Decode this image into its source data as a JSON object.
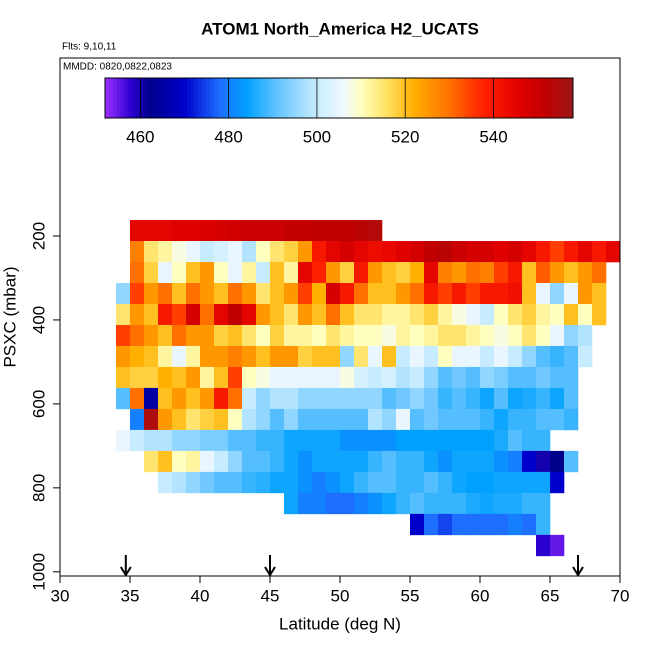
{
  "chart_data": {
    "type": "heatmap",
    "title": "ATOM1 North_America H2_UCATS",
    "subtitle": "Flts: 9,10,11",
    "annotation": "MMDD: 0820,0822,0823",
    "xlabel": "Latitude (deg N)",
    "ylabel": "PSXC (mbar)",
    "xlim": [
      30,
      70
    ],
    "xticks": [
      30,
      35,
      40,
      45,
      50,
      55,
      60,
      65,
      70
    ],
    "ylim": [
      1010,
      -224
    ],
    "yticks": [
      200,
      400,
      600,
      800,
      1000
    ],
    "clim": [
      452,
      558
    ],
    "cticks": [
      460,
      480,
      500,
      520,
      540
    ],
    "colorscale": [
      [
        452,
        "#9b30ff"
      ],
      [
        458,
        "#2a00d0"
      ],
      [
        462,
        "#00008b"
      ],
      [
        470,
        "#0000cd"
      ],
      [
        478,
        "#1e6fff"
      ],
      [
        484,
        "#00a0ff"
      ],
      [
        492,
        "#70c8ff"
      ],
      [
        500,
        "#c8ecff"
      ],
      [
        506,
        "#f0f8ff"
      ],
      [
        510,
        "#ffffc0"
      ],
      [
        516,
        "#ffe060"
      ],
      [
        522,
        "#ffb000"
      ],
      [
        530,
        "#ff7000"
      ],
      [
        538,
        "#ff2000"
      ],
      [
        546,
        "#e00000"
      ],
      [
        552,
        "#c00000"
      ],
      [
        558,
        "#9a1a1a"
      ]
    ],
    "arrows": [
      34.7,
      45,
      67
    ],
    "xbins": [
      34,
      35,
      36,
      37,
      38,
      39,
      40,
      41,
      42,
      43,
      44,
      45,
      46,
      47,
      48,
      49,
      50,
      51,
      52,
      53,
      54,
      55,
      56,
      57,
      58,
      59,
      60,
      61,
      62,
      63,
      64,
      65,
      66,
      67,
      68,
      69,
      70
    ],
    "ybins": [
      162,
      212,
      262,
      312,
      362,
      412,
      462,
      512,
      562,
      612,
      662,
      712,
      762,
      812,
      862,
      912,
      962
    ],
    "z": [
      [
        null,
        545,
        545,
        545,
        546,
        546,
        547,
        548,
        549,
        550,
        550,
        550,
        551,
        551,
        552,
        552,
        552,
        553,
        554,
        null,
        null,
        null,
        null,
        null,
        null,
        null,
        null,
        null,
        null,
        null,
        null,
        null,
        null,
        null,
        null,
        null
      ],
      [
        null,
        528,
        515,
        512,
        508,
        505,
        500,
        502,
        505,
        498,
        510,
        515,
        518,
        525,
        540,
        545,
        548,
        545,
        543,
        544,
        546,
        548,
        552,
        553,
        550,
        548,
        548,
        546,
        548,
        545,
        540,
        535,
        540,
        545,
        540,
        545
      ],
      [
        null,
        530,
        518,
        505,
        510,
        520,
        525,
        510,
        505,
        512,
        500,
        520,
        512,
        545,
        538,
        525,
        518,
        540,
        525,
        520,
        518,
        522,
        545,
        528,
        525,
        530,
        528,
        535,
        540,
        520,
        532,
        525,
        520,
        525,
        530,
        null
      ],
      [
        495,
        535,
        525,
        530,
        520,
        530,
        525,
        520,
        530,
        525,
        515,
        520,
        525,
        535,
        522,
        548,
        540,
        530,
        520,
        520,
        525,
        530,
        540,
        535,
        540,
        535,
        540,
        540,
        542,
        520,
        505,
        495,
        505,
        525,
        520,
        null
      ],
      [
        515,
        525,
        520,
        540,
        535,
        548,
        530,
        545,
        552,
        545,
        525,
        520,
        515,
        525,
        520,
        530,
        520,
        515,
        515,
        512,
        512,
        515,
        518,
        512,
        508,
        505,
        500,
        510,
        515,
        518,
        512,
        510,
        520,
        510,
        520,
        null
      ],
      [
        535,
        530,
        525,
        520,
        530,
        525,
        525,
        518,
        520,
        515,
        510,
        518,
        512,
        512,
        510,
        515,
        512,
        510,
        510,
        508,
        512,
        510,
        512,
        515,
        515,
        512,
        510,
        508,
        510,
        515,
        510,
        505,
        495,
        498,
        null,
        null
      ],
      [
        525,
        522,
        520,
        512,
        505,
        512,
        525,
        525,
        528,
        525,
        520,
        525,
        525,
        518,
        520,
        520,
        495,
        515,
        505,
        520,
        500,
        505,
        500,
        510,
        505,
        505,
        500,
        505,
        500,
        495,
        490,
        488,
        490,
        500,
        null,
        null
      ],
      [
        520,
        518,
        518,
        522,
        520,
        525,
        512,
        520,
        535,
        510,
        508,
        505,
        505,
        505,
        505,
        505,
        508,
        502,
        500,
        502,
        498,
        500,
        495,
        490,
        492,
        490,
        495,
        493,
        490,
        490,
        492,
        490,
        490,
        null,
        null,
        null
      ],
      [
        490,
        530,
        465,
        520,
        525,
        520,
        525,
        540,
        530,
        500,
        495,
        498,
        498,
        495,
        495,
        495,
        495,
        495,
        495,
        490,
        492,
        495,
        492,
        488,
        490,
        488,
        485,
        490,
        485,
        486,
        488,
        485,
        490,
        null,
        null,
        null
      ],
      [
        null,
        480,
        555,
        525,
        520,
        515,
        518,
        520,
        510,
        498,
        495,
        490,
        495,
        490,
        490,
        490,
        490,
        490,
        498,
        495,
        505,
        490,
        492,
        490,
        490,
        490,
        488,
        485,
        488,
        488,
        490,
        490,
        488,
        null,
        null,
        null
      ],
      [
        505,
        500,
        498,
        498,
        495,
        495,
        493,
        493,
        490,
        490,
        488,
        488,
        485,
        485,
        485,
        485,
        482,
        482,
        482,
        482,
        484,
        484,
        484,
        484,
        484,
        484,
        484,
        486,
        490,
        488,
        488,
        null,
        null,
        null,
        null,
        null
      ],
      [
        null,
        null,
        515,
        520,
        510,
        512,
        505,
        500,
        495,
        490,
        490,
        488,
        485,
        482,
        485,
        485,
        485,
        485,
        488,
        490,
        488,
        488,
        485,
        482,
        485,
        485,
        485,
        482,
        480,
        470,
        460,
        462,
        490,
        null,
        null,
        null
      ],
      [
        null,
        null,
        null,
        500,
        498,
        495,
        492,
        490,
        490,
        488,
        487,
        485,
        485,
        482,
        480,
        482,
        485,
        488,
        490,
        490,
        488,
        488,
        490,
        488,
        485,
        484,
        484,
        485,
        485,
        485,
        485,
        470,
        null,
        null,
        null,
        null
      ],
      [
        null,
        null,
        null,
        null,
        null,
        null,
        null,
        null,
        null,
        null,
        null,
        null,
        485,
        480,
        480,
        478,
        478,
        480,
        482,
        485,
        488,
        490,
        488,
        488,
        488,
        486,
        485,
        486,
        486,
        488,
        488,
        null,
        null,
        null,
        null,
        null
      ],
      [
        null,
        null,
        null,
        null,
        null,
        null,
        null,
        null,
        null,
        null,
        null,
        null,
        null,
        null,
        null,
        null,
        null,
        null,
        null,
        null,
        null,
        470,
        478,
        475,
        478,
        478,
        478,
        478,
        480,
        478,
        488,
        null,
        null,
        null,
        null,
        null
      ],
      [
        null,
        null,
        null,
        null,
        null,
        null,
        null,
        null,
        null,
        null,
        null,
        null,
        null,
        null,
        null,
        null,
        null,
        null,
        null,
        null,
        null,
        null,
        null,
        null,
        null,
        null,
        null,
        null,
        null,
        null,
        458,
        455,
        null,
        null,
        null,
        null
      ]
    ]
  }
}
